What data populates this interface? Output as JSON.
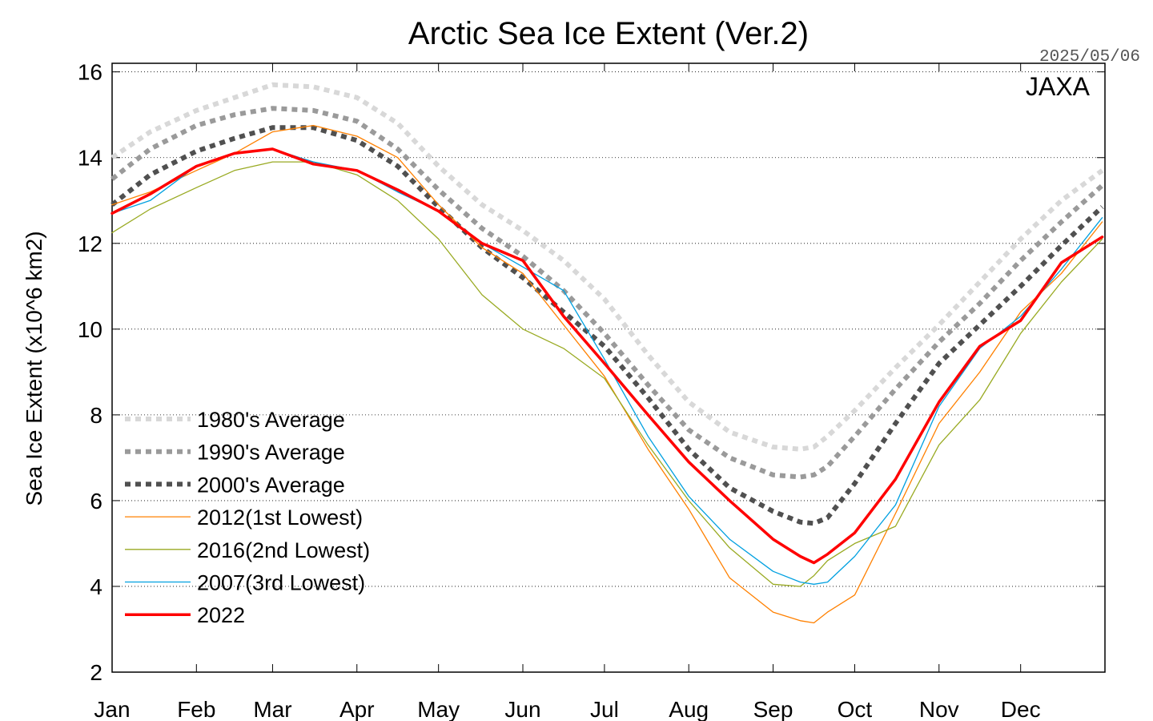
{
  "chart_data": {
    "type": "line",
    "title": "Arctic Sea Ice Extent (Ver.2)",
    "date_stamp": "2025/05/06",
    "watermark": "JAXA",
    "xlabel": "",
    "ylabel": "Sea Ice Extent (x10^6 km2)",
    "ylim": [
      2,
      16.2
    ],
    "yticks": [
      2,
      4,
      6,
      8,
      10,
      12,
      14,
      16
    ],
    "xlim": [
      1,
      365
    ],
    "xticks": [
      {
        "label": "Jan",
        "day": 1
      },
      {
        "label": "Feb",
        "day": 32
      },
      {
        "label": "Mar",
        "day": 60
      },
      {
        "label": "Apr",
        "day": 91
      },
      {
        "label": "May",
        "day": 121
      },
      {
        "label": "Jun",
        "day": 152
      },
      {
        "label": "Jul",
        "day": 182
      },
      {
        "label": "Aug",
        "day": 213
      },
      {
        "label": "Sep",
        "day": 244
      },
      {
        "label": "Oct",
        "day": 274
      },
      {
        "label": "Nov",
        "day": 305
      },
      {
        "label": "Dec",
        "day": 335
      }
    ],
    "grid": "horizontal-dotted",
    "legend_position": "lower-left",
    "series": [
      {
        "name": "1980's Average",
        "color": "#d8d8d8",
        "style": "dotted-thick",
        "x": [
          1,
          15,
          32,
          46,
          60,
          75,
          91,
          106,
          121,
          137,
          152,
          167,
          182,
          198,
          213,
          228,
          244,
          254,
          259,
          264,
          274,
          289,
          305,
          320,
          335,
          350,
          365
        ],
        "y": [
          14.0,
          14.6,
          15.1,
          15.4,
          15.7,
          15.65,
          15.4,
          14.8,
          13.8,
          12.9,
          12.3,
          11.6,
          10.7,
          9.4,
          8.3,
          7.6,
          7.25,
          7.2,
          7.25,
          7.5,
          8.1,
          9.1,
          10.1,
          11.1,
          12.1,
          13.0,
          13.7
        ]
      },
      {
        "name": "1990's Average",
        "color": "#9a9a9a",
        "style": "dotted-thick",
        "x": [
          1,
          15,
          32,
          46,
          60,
          75,
          91,
          106,
          121,
          137,
          152,
          167,
          182,
          198,
          213,
          228,
          244,
          254,
          259,
          264,
          274,
          289,
          305,
          320,
          335,
          350,
          365
        ],
        "y": [
          13.5,
          14.2,
          14.75,
          15.0,
          15.15,
          15.1,
          14.85,
          14.2,
          13.25,
          12.35,
          11.7,
          10.9,
          9.9,
          8.7,
          7.65,
          7.0,
          6.6,
          6.55,
          6.6,
          6.8,
          7.5,
          8.6,
          9.7,
          10.6,
          11.6,
          12.5,
          13.35
        ]
      },
      {
        "name": "2000's Average",
        "color": "#505050",
        "style": "dotted-thick",
        "x": [
          1,
          15,
          32,
          46,
          60,
          75,
          91,
          106,
          121,
          137,
          152,
          167,
          182,
          198,
          213,
          228,
          244,
          254,
          259,
          264,
          274,
          289,
          305,
          320,
          335,
          350,
          365
        ],
        "y": [
          12.9,
          13.6,
          14.15,
          14.45,
          14.7,
          14.7,
          14.4,
          13.8,
          12.85,
          11.9,
          11.2,
          10.4,
          9.6,
          8.4,
          7.2,
          6.3,
          5.75,
          5.5,
          5.47,
          5.6,
          6.4,
          7.8,
          9.2,
          10.1,
          11.0,
          11.95,
          12.85
        ]
      },
      {
        "name": "2012(1st Lowest)",
        "color": "#ff8000",
        "style": "solid-thin",
        "x": [
          1,
          15,
          32,
          46,
          60,
          75,
          91,
          106,
          121,
          137,
          152,
          167,
          182,
          198,
          213,
          228,
          244,
          254,
          259,
          264,
          274,
          289,
          305,
          320,
          335,
          350,
          365
        ],
        "y": [
          12.9,
          13.2,
          13.7,
          14.1,
          14.6,
          14.75,
          14.5,
          14.0,
          12.9,
          11.9,
          11.3,
          10.1,
          8.9,
          7.2,
          5.8,
          4.2,
          3.4,
          3.2,
          3.15,
          3.4,
          3.8,
          5.7,
          7.8,
          9.0,
          10.4,
          11.3,
          12.5
        ]
      },
      {
        "name": "2016(2nd Lowest)",
        "color": "#99aa22",
        "style": "solid-thin",
        "x": [
          1,
          15,
          32,
          46,
          60,
          75,
          91,
          106,
          121,
          137,
          152,
          167,
          182,
          198,
          213,
          228,
          244,
          254,
          259,
          264,
          274,
          289,
          305,
          320,
          335,
          350,
          365
        ],
        "y": [
          12.25,
          12.8,
          13.3,
          13.7,
          13.9,
          13.9,
          13.6,
          13.0,
          12.1,
          10.8,
          10.0,
          9.55,
          8.85,
          7.3,
          6.0,
          4.9,
          4.05,
          4.0,
          4.25,
          4.6,
          5.0,
          5.4,
          7.3,
          8.35,
          9.9,
          11.1,
          12.1
        ]
      },
      {
        "name": "2007(3rd Lowest)",
        "color": "#00a0e0",
        "style": "solid-thin",
        "x": [
          1,
          15,
          32,
          46,
          60,
          75,
          91,
          106,
          121,
          137,
          152,
          167,
          182,
          198,
          213,
          228,
          244,
          254,
          259,
          264,
          274,
          289,
          305,
          320,
          335,
          350,
          365
        ],
        "y": [
          12.7,
          13.0,
          13.8,
          14.1,
          14.2,
          13.9,
          13.7,
          13.2,
          12.75,
          12.0,
          11.45,
          10.9,
          9.3,
          7.5,
          6.1,
          5.1,
          4.35,
          4.1,
          4.05,
          4.1,
          4.7,
          5.9,
          8.2,
          9.55,
          10.3,
          11.4,
          12.6
        ]
      },
      {
        "name": "2022",
        "color": "#ff0000",
        "style": "solid-thick",
        "x": [
          1,
          15,
          32,
          46,
          60,
          75,
          91,
          106,
          121,
          137,
          152,
          167,
          182,
          198,
          213,
          228,
          244,
          254,
          259,
          264,
          274,
          289,
          305,
          320,
          335,
          350,
          365
        ],
        "y": [
          12.7,
          13.15,
          13.8,
          14.1,
          14.2,
          13.85,
          13.7,
          13.25,
          12.75,
          12.0,
          11.6,
          10.3,
          9.2,
          8.0,
          6.9,
          6.0,
          5.1,
          4.7,
          4.55,
          4.75,
          5.25,
          6.5,
          8.3,
          9.6,
          10.2,
          11.55,
          12.15
        ]
      }
    ]
  }
}
